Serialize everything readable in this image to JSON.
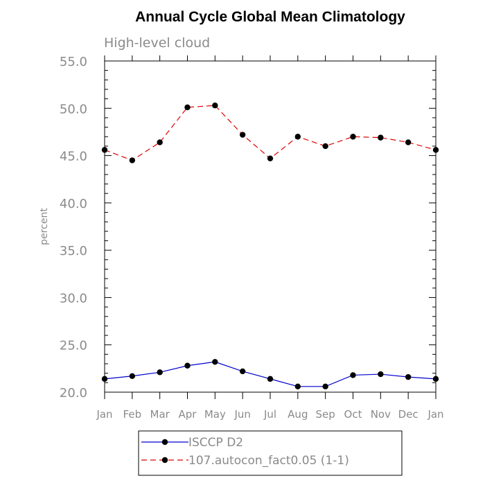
{
  "chart_data": {
    "type": "line",
    "title": "Annual Cycle Global Mean Climatology",
    "subtitle": "High-level cloud",
    "xlabel": "",
    "ylabel": "percent",
    "categories": [
      "Jan",
      "Feb",
      "Mar",
      "Apr",
      "May",
      "Jun",
      "Jul",
      "Aug",
      "Sep",
      "Oct",
      "Nov",
      "Dec",
      "Jan"
    ],
    "ylim": [
      20.0,
      55.0
    ],
    "yticks": [
      "20.0",
      "25.0",
      "30.0",
      "35.0",
      "40.0",
      "45.0",
      "50.0",
      "55.0"
    ],
    "series": [
      {
        "name": "ISCCP D2",
        "color": "#0000cc",
        "dash": "solid",
        "values": [
          21.4,
          21.7,
          22.1,
          22.8,
          23.2,
          22.2,
          21.4,
          20.6,
          20.6,
          21.8,
          21.9,
          21.6,
          21.4
        ]
      },
      {
        "name": "107.autocon_fact0.05 (1-1)",
        "color": "#e00000",
        "dash": "dashed",
        "values": [
          45.6,
          44.5,
          46.4,
          50.1,
          50.3,
          47.2,
          44.7,
          47.0,
          46.0,
          47.0,
          46.9,
          46.4,
          45.6
        ]
      }
    ],
    "grid": false,
    "legend": "bottom"
  }
}
